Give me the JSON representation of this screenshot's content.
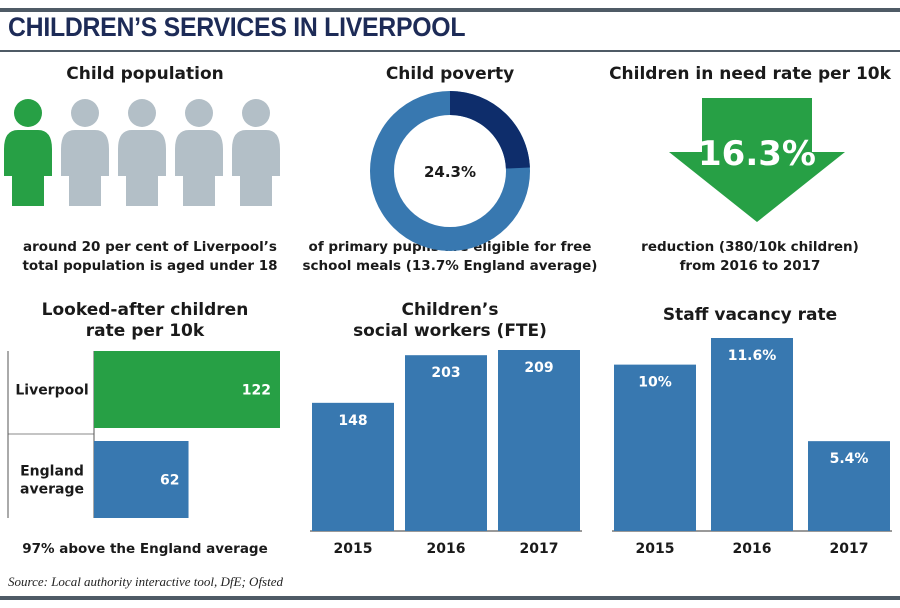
{
  "title": "CHILDREN’S SERVICES IN LIVERPOOL",
  "source": "Source: Local authority interactive tool, DfE; Ofsted",
  "colors": {
    "green": "#27a045",
    "blue": "#3878b0",
    "navy": "#0e2d6b",
    "grey": "#b3bfc7",
    "title": "#1d2b57"
  },
  "population": {
    "heading": "Child population",
    "icon": "person-icon",
    "figures_total": 5,
    "figures_highlighted": 1,
    "caption_line1": "around 20 per cent of Liverpool’s",
    "caption_line2": "total population is aged under 18"
  },
  "poverty": {
    "heading": "Child poverty",
    "value": 24.3,
    "value_label": "24.3%",
    "caption_line1": "of primary pupils are eligible for free",
    "caption_line2": "school meals (13.7% England average)"
  },
  "need": {
    "heading": "Children in need rate per 10k",
    "value_label": "16.3%",
    "icon": "down-arrow-icon",
    "caption_line1": "reduction (380/10k children)",
    "caption_line2": "from 2016 to 2017"
  },
  "chart_data": [
    {
      "type": "bar",
      "orientation": "horizontal",
      "title_line1": "Looked-after children",
      "title_line2": "rate per 10k",
      "categories": [
        "Liverpool",
        "England average"
      ],
      "category_lines": [
        [
          "Liverpool"
        ],
        [
          "England",
          "average"
        ]
      ],
      "values": [
        122,
        62
      ],
      "value_labels": [
        "122",
        "62"
      ],
      "xlim": [
        0,
        122
      ],
      "note": "97% above the England average"
    },
    {
      "type": "bar",
      "title_line1": "Children’s",
      "title_line2": "social workers (FTE)",
      "categories": [
        "2015",
        "2016",
        "2017"
      ],
      "values": [
        148,
        203,
        209
      ],
      "value_labels": [
        "148",
        "203",
        "209"
      ],
      "ylim": [
        0,
        209
      ]
    },
    {
      "type": "bar",
      "title": "Staff vacancy rate",
      "categories": [
        "2015",
        "2016",
        "2017"
      ],
      "values": [
        10,
        11.6,
        5.4
      ],
      "value_labels": [
        "10%",
        "11.6%",
        "5.4%"
      ],
      "ylim": [
        0,
        11.6
      ]
    }
  ]
}
